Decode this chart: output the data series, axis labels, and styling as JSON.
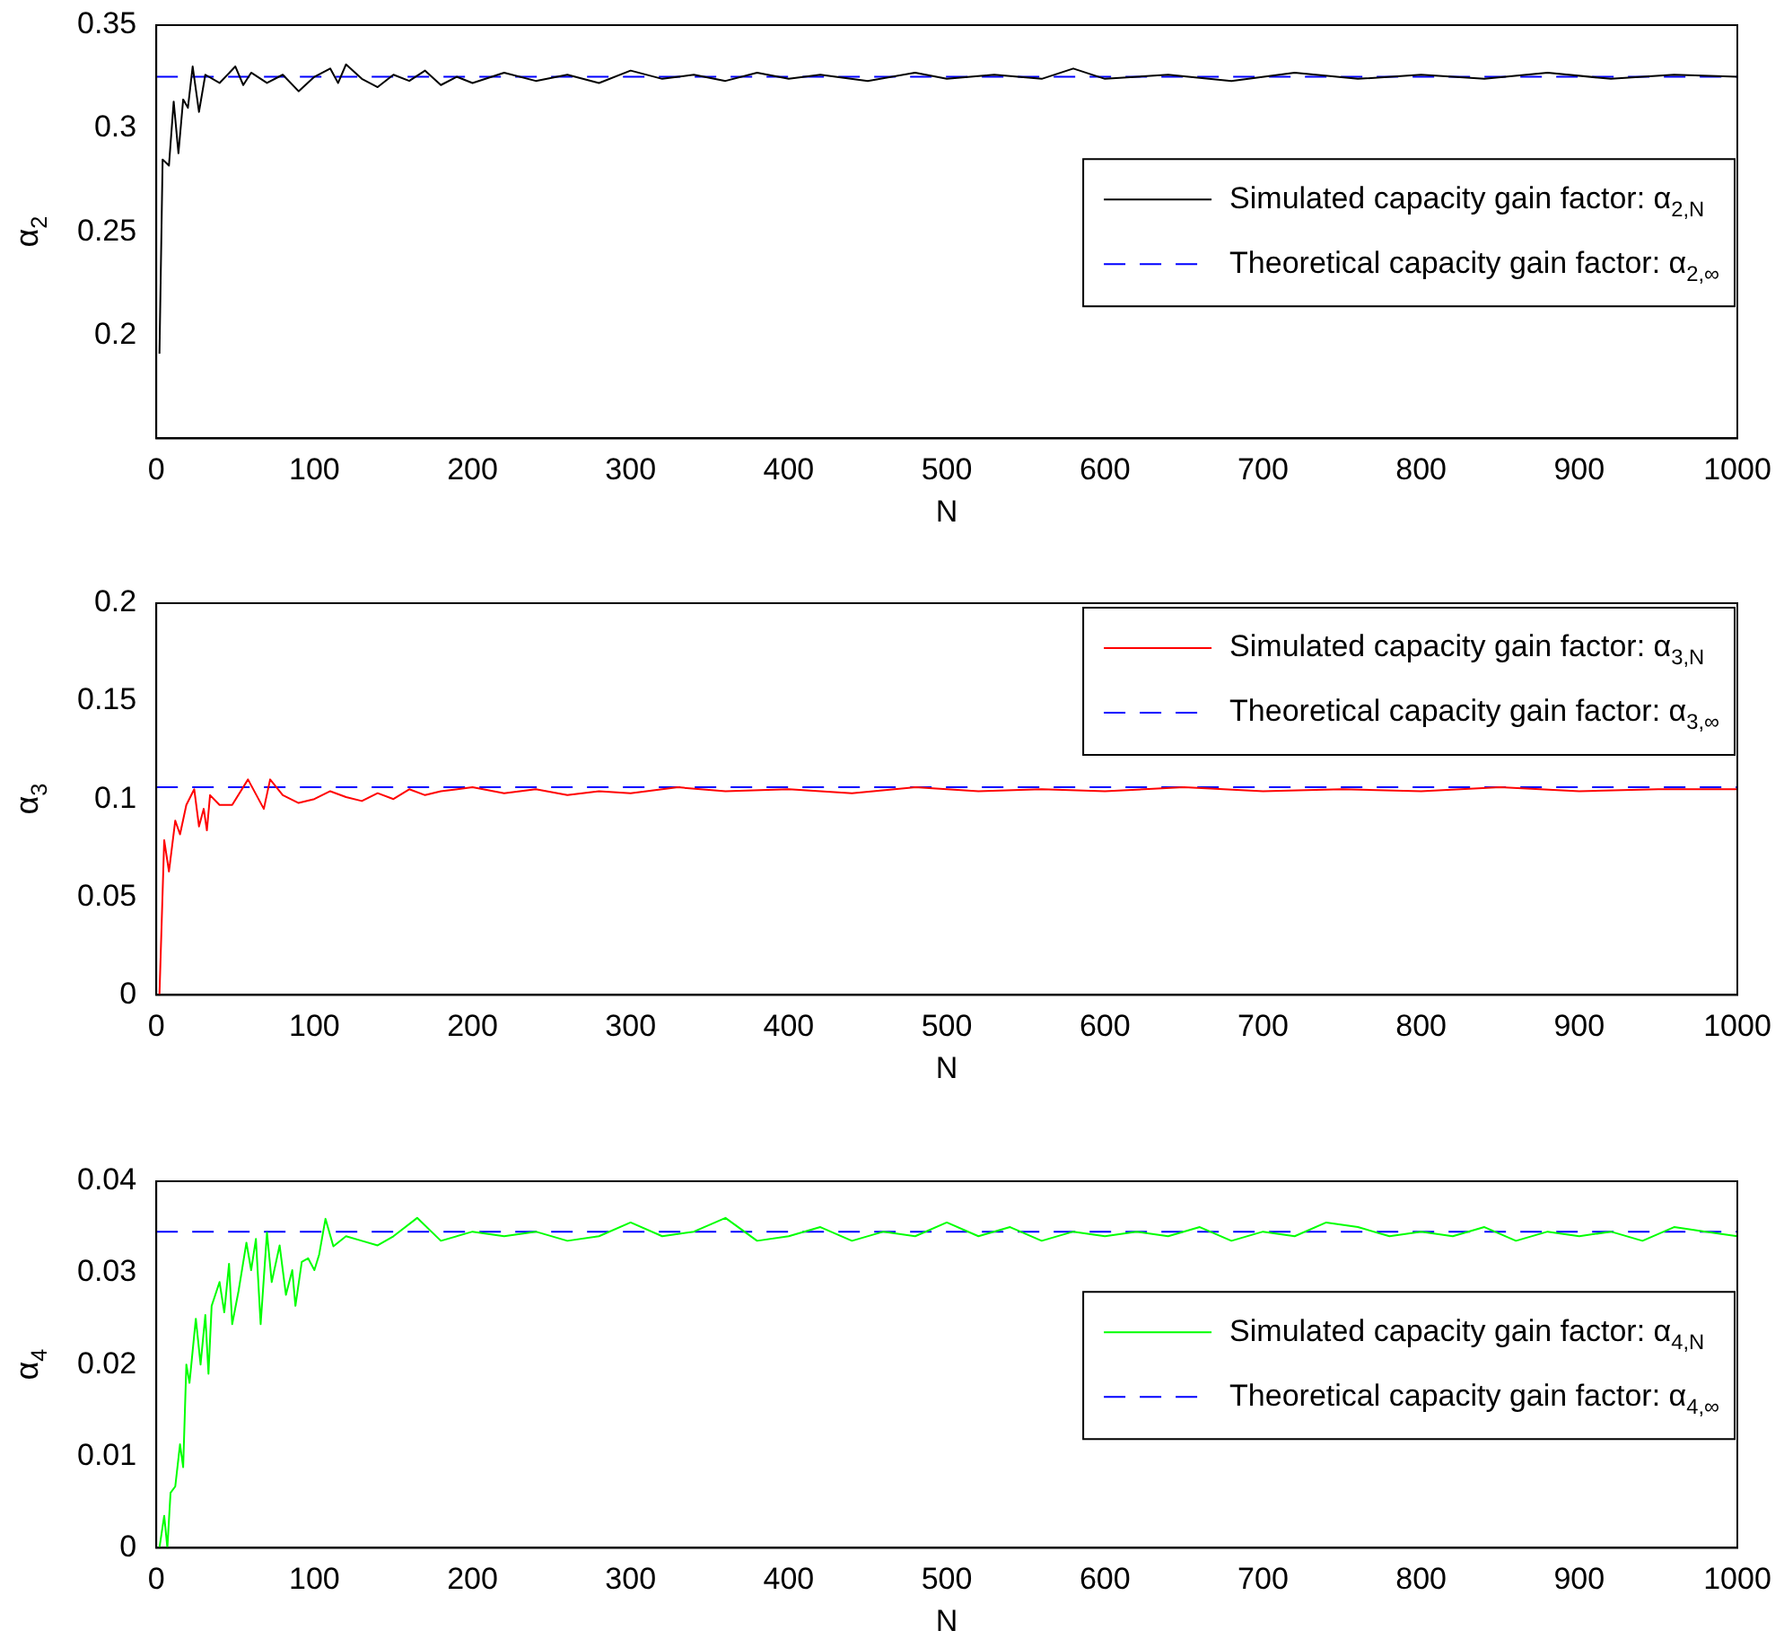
{
  "chart_data": [
    {
      "type": "line",
      "xlabel": "N",
      "ylabel": "α$_{2}$",
      "xlim": [
        0,
        1000
      ],
      "xticks": [
        0,
        100,
        200,
        300,
        400,
        500,
        600,
        700,
        800,
        900,
        1000
      ],
      "ylim": [
        0.15,
        0.35
      ],
      "yticks": [
        0.2,
        0.25,
        0.3,
        0.35
      ],
      "grid": false,
      "legend": "right",
      "marker": "none",
      "series": [
        {
          "name": "Simulated capacity gain factor: α$_{2,N}$",
          "color": "#000000",
          "line_style": "solid",
          "x": [
            2,
            4,
            8,
            11,
            14,
            17,
            20,
            23,
            27,
            31,
            40,
            50,
            55,
            60,
            70,
            80,
            90,
            100,
            110,
            115,
            120,
            130,
            140,
            150,
            160,
            170,
            180,
            190,
            200,
            220,
            240,
            260,
            280,
            300,
            320,
            340,
            360,
            380,
            400,
            420,
            450,
            480,
            500,
            530,
            560,
            580,
            600,
            640,
            680,
            720,
            760,
            800,
            840,
            880,
            920,
            960,
            1000
          ],
          "values": [
            0.191,
            0.285,
            0.282,
            0.313,
            0.288,
            0.314,
            0.31,
            0.33,
            0.308,
            0.326,
            0.322,
            0.33,
            0.321,
            0.327,
            0.322,
            0.326,
            0.318,
            0.325,
            0.329,
            0.322,
            0.331,
            0.324,
            0.32,
            0.326,
            0.323,
            0.328,
            0.321,
            0.325,
            0.322,
            0.327,
            0.323,
            0.326,
            0.322,
            0.328,
            0.324,
            0.326,
            0.323,
            0.327,
            0.324,
            0.326,
            0.323,
            0.327,
            0.324,
            0.326,
            0.324,
            0.329,
            0.324,
            0.326,
            0.323,
            0.327,
            0.324,
            0.326,
            0.324,
            0.327,
            0.324,
            0.326,
            0.325
          ]
        },
        {
          "name": "Theoretical capacity gain factor: α$_{2,∞}$",
          "color": "#0000ff",
          "line_style": "dashed",
          "x": [
            0,
            1000
          ],
          "values": [
            0.325,
            0.325
          ]
        }
      ]
    },
    {
      "type": "line",
      "xlabel": "N",
      "ylabel": "α$_{3}$",
      "xlim": [
        0,
        1000
      ],
      "xticks": [
        0,
        100,
        200,
        300,
        400,
        500,
        600,
        700,
        800,
        900,
        1000
      ],
      "ylim": [
        0,
        0.2
      ],
      "yticks": [
        0,
        0.05,
        0.1,
        0.15,
        0.2
      ],
      "grid": false,
      "legend": "top right",
      "marker": "none",
      "series": [
        {
          "name": "Simulated capacity gain factor: α$_{3,N}$",
          "color": "#ff0000",
          "line_style": "solid",
          "x": [
            2,
            5,
            8,
            12,
            15,
            19,
            24,
            27,
            30,
            32,
            34,
            40,
            48,
            58,
            68,
            72,
            80,
            90,
            100,
            110,
            120,
            130,
            140,
            150,
            160,
            170,
            180,
            200,
            220,
            240,
            260,
            280,
            300,
            330,
            360,
            400,
            440,
            480,
            520,
            560,
            600,
            650,
            700,
            750,
            800,
            850,
            900,
            950,
            1000
          ],
          "values": [
            0,
            0.079,
            0.063,
            0.089,
            0.082,
            0.097,
            0.105,
            0.086,
            0.095,
            0.084,
            0.102,
            0.097,
            0.097,
            0.11,
            0.095,
            0.11,
            0.102,
            0.098,
            0.1,
            0.104,
            0.101,
            0.099,
            0.103,
            0.1,
            0.105,
            0.102,
            0.104,
            0.106,
            0.103,
            0.105,
            0.102,
            0.104,
            0.103,
            0.106,
            0.104,
            0.105,
            0.103,
            0.106,
            0.104,
            0.105,
            0.104,
            0.106,
            0.104,
            0.105,
            0.104,
            0.106,
            0.104,
            0.105,
            0.105
          ]
        },
        {
          "name": "Theoretical capacity gain factor: α$_{3,∞}$",
          "color": "#0000ff",
          "line_style": "dashed",
          "x": [
            0,
            1000
          ],
          "values": [
            0.106,
            0.106
          ]
        }
      ]
    },
    {
      "type": "line",
      "xlabel": "N",
      "ylabel": "α$_{4}$",
      "xlim": [
        0,
        1000
      ],
      "xticks": [
        0,
        100,
        200,
        300,
        400,
        500,
        600,
        700,
        800,
        900,
        1000
      ],
      "ylim": [
        0,
        0.04
      ],
      "yticks": [
        0,
        0.01,
        0.02,
        0.03,
        0.04
      ],
      "grid": false,
      "legend": "right",
      "marker": "none",
      "series": [
        {
          "name": "Simulated capacity gain factor: α$_{4,N}$",
          "color": "#00ff00",
          "line_style": "solid",
          "x": [
            2,
            5,
            7,
            9,
            12,
            15,
            17,
            19,
            21,
            25,
            28,
            31,
            33,
            35,
            40,
            43,
            46,
            48,
            52,
            57,
            60,
            63,
            66,
            70,
            73,
            78,
            82,
            86,
            88,
            92,
            96,
            100,
            103,
            107,
            112,
            120,
            130,
            140,
            150,
            165,
            180,
            200,
            220,
            240,
            260,
            280,
            300,
            320,
            340,
            360,
            380,
            400,
            420,
            440,
            460,
            480,
            500,
            520,
            540,
            560,
            580,
            600,
            620,
            640,
            660,
            680,
            700,
            720,
            740,
            760,
            780,
            800,
            820,
            840,
            860,
            880,
            900,
            920,
            940,
            960,
            980,
            1000
          ],
          "values": [
            0,
            0.0035,
            0,
            0.006,
            0.0067,
            0.0113,
            0.0088,
            0.02,
            0.018,
            0.025,
            0.02,
            0.0254,
            0.019,
            0.0264,
            0.029,
            0.0257,
            0.031,
            0.0244,
            0.028,
            0.0333,
            0.0303,
            0.0337,
            0.0244,
            0.0344,
            0.029,
            0.033,
            0.0276,
            0.0303,
            0.0264,
            0.0312,
            0.0316,
            0.0303,
            0.032,
            0.0359,
            0.0329,
            0.034,
            0.0335,
            0.033,
            0.034,
            0.036,
            0.0335,
            0.0345,
            0.034,
            0.0345,
            0.0335,
            0.034,
            0.0355,
            0.034,
            0.0345,
            0.036,
            0.0335,
            0.034,
            0.035,
            0.0335,
            0.0345,
            0.034,
            0.0355,
            0.034,
            0.035,
            0.0335,
            0.0345,
            0.034,
            0.0345,
            0.034,
            0.035,
            0.0335,
            0.0345,
            0.034,
            0.0355,
            0.035,
            0.034,
            0.0345,
            0.034,
            0.035,
            0.0335,
            0.0345,
            0.034,
            0.0345,
            0.0335,
            0.035,
            0.0345,
            0.034
          ]
        },
        {
          "name": "Theoretical capacity gain factor: α$_{4,∞}$",
          "color": "#0000ff",
          "line_style": "dashed",
          "x": [
            0,
            1000
          ],
          "values": [
            0.0345,
            0.0345
          ]
        }
      ]
    }
  ]
}
